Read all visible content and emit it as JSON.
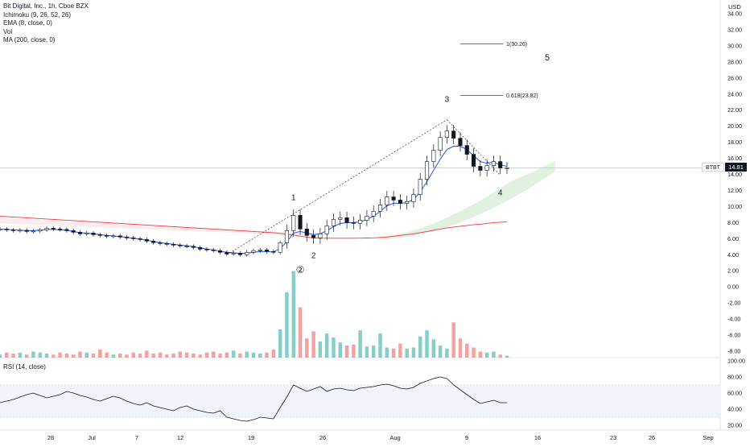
{
  "legend": {
    "symbol": "Bit Digital, Inc., 1h, Cboe BZX",
    "ichimoku": "Ichimoku (9, 26, 52, 26)",
    "ema": "EMA (8, close, 0)",
    "vol": "Vol",
    "ma": "MA (200, close, 0)"
  },
  "rsi_legend": "RSI (14, close)",
  "currency": "USD",
  "ticker_tag": "BTBT",
  "last_price_tag": "14.81",
  "colors": {
    "candle": "#131722",
    "ema": "#2962ff",
    "ma200": "#f23645",
    "cloud": "#a5d6a7",
    "cloud_red": "#f7c5c5",
    "vol_up": "#26a69a",
    "vol_down": "#ef5350",
    "rsi": "#131722",
    "rsi_band": "#f0f3fa",
    "grid_line": "#b2b5be"
  },
  "chart_data": {
    "type": "candlestick",
    "price_axis": {
      "ticks": [
        "34.00",
        "32.00",
        "30.00",
        "28.00",
        "26.00",
        "24.00",
        "22.00",
        "20.00",
        "18.00",
        "16.00",
        "14.00",
        "12.00",
        "10.00",
        "8.00",
        "6.00",
        "4.00",
        "2.00",
        "0.00",
        "-2.00",
        "-4.00",
        "-6.00",
        "-8.00"
      ],
      "range": [
        -9,
        35.5
      ]
    },
    "rsi_axis": {
      "ticks": [
        "100.00",
        "80.00",
        "60.00",
        "40.00",
        "20.00"
      ],
      "range": [
        12,
        100
      ],
      "band": [
        30,
        70
      ]
    },
    "x_axis": {
      "ticks": [
        "28",
        "Jul",
        "7",
        "12",
        "19",
        "26",
        "Aug",
        "9",
        "16",
        "23",
        "26",
        "Sep"
      ]
    },
    "price_series": [
      7.2,
      7.1,
      7.0,
      7.05,
      6.9,
      6.95,
      7.1,
      7.3,
      7.2,
      7.15,
      7.0,
      6.8,
      6.6,
      6.7,
      6.5,
      6.4,
      6.3,
      6.35,
      6.2,
      6.1,
      6.0,
      5.9,
      5.7,
      5.5,
      5.4,
      5.3,
      5.2,
      5.1,
      5.05,
      4.9,
      4.7,
      4.6,
      4.5,
      4.3,
      4.1,
      4.2,
      4.0,
      4.3,
      4.5,
      4.6,
      4.4,
      4.3,
      5.5,
      7.0,
      8.9,
      7.2,
      6.4,
      6.1,
      6.6,
      7.6,
      8.4,
      8.6,
      8.0,
      7.9,
      8.3,
      8.8,
      9.4,
      10.2,
      11.2,
      10.8,
      10.4,
      10.6,
      11.5,
      13.4,
      15.6,
      17.0,
      18.6,
      19.4,
      18.5,
      17.6,
      16.5,
      15.0,
      14.5,
      15.1,
      15.6,
      14.8,
      14.81
    ],
    "ema_series": [
      7.2,
      7.15,
      7.1,
      7.05,
      7.0,
      7.0,
      7.05,
      7.15,
      7.15,
      7.1,
      7.05,
      6.9,
      6.75,
      6.7,
      6.6,
      6.5,
      6.4,
      6.35,
      6.25,
      6.15,
      6.05,
      5.95,
      5.8,
      5.65,
      5.5,
      5.4,
      5.3,
      5.2,
      5.1,
      5.0,
      4.85,
      4.7,
      4.6,
      4.45,
      4.3,
      4.25,
      4.15,
      4.2,
      4.3,
      4.4,
      4.4,
      4.35,
      4.8,
      5.6,
      6.7,
      6.9,
      6.7,
      6.5,
      6.6,
      7.0,
      7.5,
      7.9,
      8.0,
      8.0,
      8.1,
      8.4,
      8.8,
      9.4,
      10.1,
      10.4,
      10.4,
      10.5,
      10.9,
      11.8,
      13.1,
      14.5,
      15.9,
      17.1,
      17.5,
      17.5,
      17.1,
      16.3,
      15.6,
      15.4,
      15.5,
      15.2,
      15.0
    ],
    "ma200_series": [
      8.8,
      8.75,
      8.7,
      8.65,
      8.6,
      8.55,
      8.5,
      8.45,
      8.4,
      8.35,
      8.3,
      8.25,
      8.2,
      8.15,
      8.1,
      8.05,
      8.0,
      7.95,
      7.9,
      7.85,
      7.8,
      7.75,
      7.7,
      7.65,
      7.6,
      7.55,
      7.5,
      7.45,
      7.4,
      7.35,
      7.3,
      7.25,
      7.2,
      7.15,
      7.1,
      7.05,
      7.0,
      6.95,
      6.9,
      6.85,
      6.8,
      6.75,
      6.65,
      6.55,
      6.45,
      6.3,
      6.2,
      6.1,
      6.05,
      6.05,
      6.05,
      6.05,
      6.05,
      6.05,
      6.06,
      6.08,
      6.1,
      6.15,
      6.2,
      6.3,
      6.4,
      6.5,
      6.6,
      6.75,
      6.9,
      7.05,
      7.2,
      7.35,
      7.45,
      7.55,
      7.65,
      7.75,
      7.8,
      7.9,
      8.0,
      8.05,
      8.1
    ],
    "volume_series": [
      0.3,
      0.5,
      0.4,
      0.5,
      0.3,
      0.6,
      0.5,
      0.4,
      0.3,
      0.5,
      0.4,
      0.3,
      0.6,
      0.5,
      0.4,
      0.8,
      0.5,
      0.3,
      0.4,
      0.3,
      0.5,
      0.4,
      0.7,
      0.4,
      0.5,
      0.3,
      0.4,
      0.6,
      0.5,
      0.4,
      0.3,
      0.5,
      0.6,
      0.4,
      0.5,
      0.7,
      0.4,
      0.6,
      0.5,
      0.4,
      0.5,
      0.8,
      2.8,
      6.5,
      8.6,
      5.0,
      1.9,
      2.6,
      1.6,
      2.4,
      2.0,
      1.5,
      1.2,
      1.3,
      2.7,
      1.1,
      1.2,
      2.4,
      1.0,
      0.9,
      1.4,
      0.9,
      1.0,
      2.1,
      2.7,
      1.8,
      1.2,
      0.9,
      3.5,
      1.9,
      1.4,
      1.0,
      0.6,
      0.5,
      0.6,
      0.3,
      0.2
    ],
    "rsi_series": [
      48,
      50,
      52,
      55,
      58,
      60,
      57,
      54,
      56,
      58,
      62,
      60,
      57,
      55,
      52,
      50,
      53,
      56,
      54,
      50,
      47,
      45,
      48,
      44,
      42,
      40,
      38,
      42,
      44,
      40,
      38,
      36,
      35,
      38,
      30,
      28,
      26,
      25,
      27,
      30,
      29,
      28,
      42,
      55,
      70,
      66,
      62,
      65,
      68,
      62,
      65,
      66,
      64,
      63,
      66,
      67,
      68,
      70,
      71,
      69,
      66,
      65,
      67,
      72,
      75,
      78,
      80,
      78,
      70,
      64,
      58,
      52,
      47,
      49,
      51,
      48,
      48
    ],
    "wave_labels": [
      "1",
      "2",
      "3",
      "4",
      "5",
      "②"
    ],
    "fib_levels": [
      {
        "label": "1(30.26)",
        "value": 30.26
      },
      {
        "label": "0.618(23.82)",
        "value": 23.82
      }
    ],
    "last_price": 14.81
  }
}
